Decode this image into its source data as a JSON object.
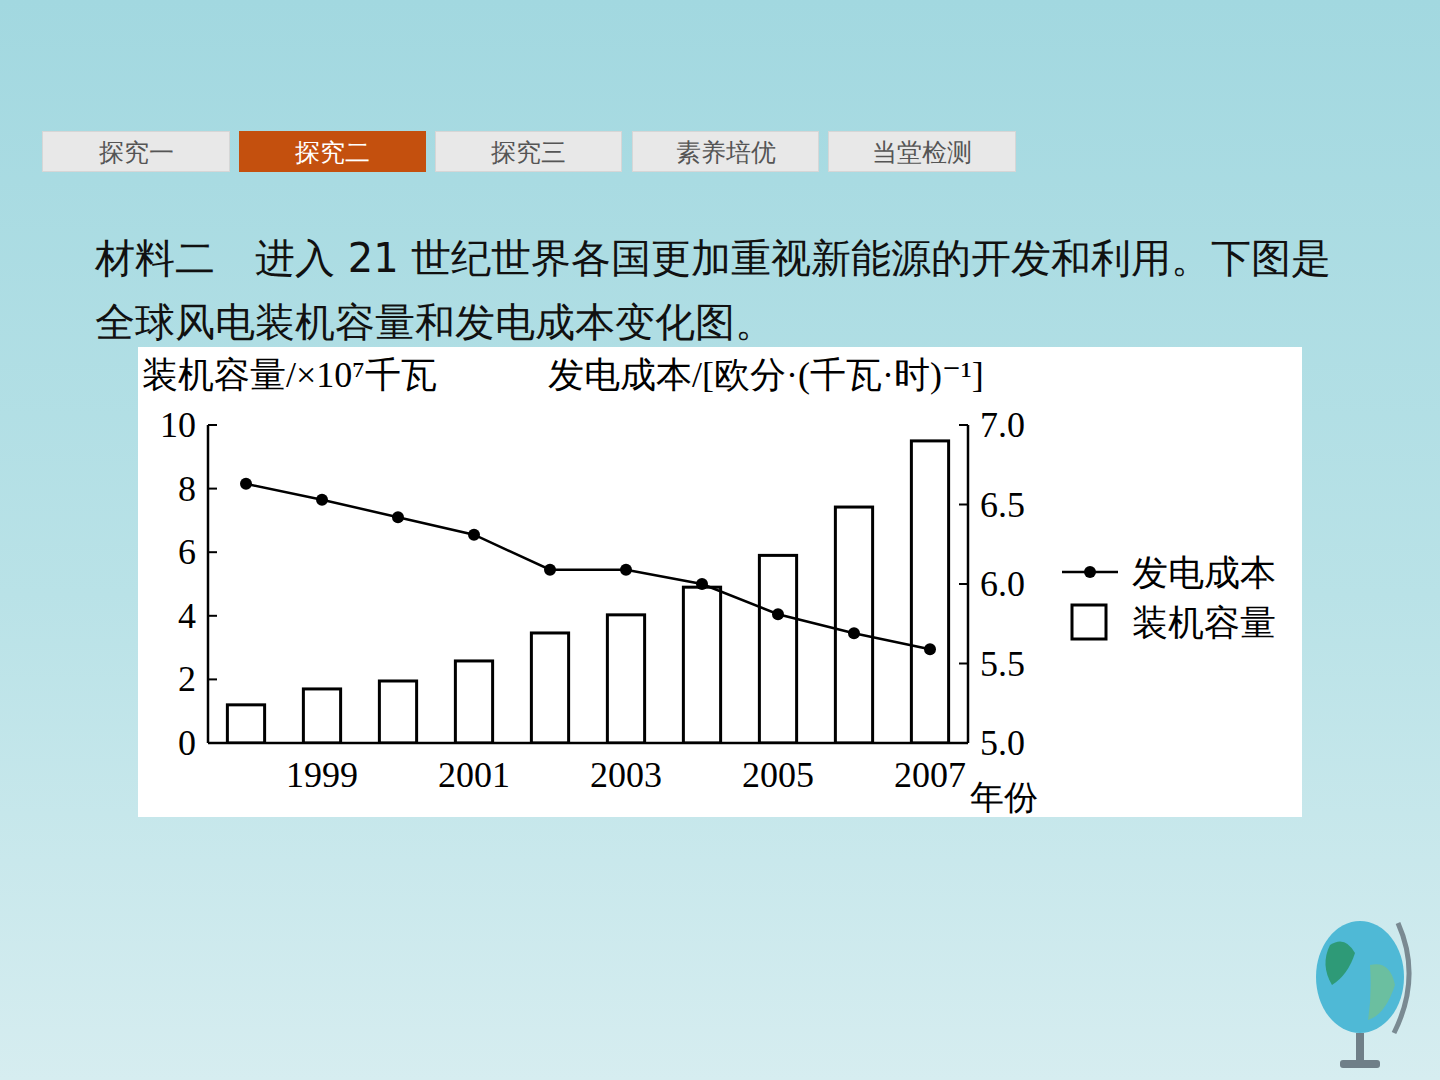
{
  "tabs": [
    {
      "label": "探究一"
    },
    {
      "label": "探究二",
      "active": true
    },
    {
      "label": "探究三"
    },
    {
      "label": "素养培优"
    },
    {
      "label": "当堂检测"
    }
  ],
  "material": "材料二　进入 21 世纪世界各国更加重视新能源的开发和利用。下图是全球风电装机容量和发电成本变化图。",
  "chart_data": {
    "type": "bar",
    "y_label": "装机容量/×10⁷千瓦",
    "y2_label": "发电成本/[欧分·(千瓦·时)⁻¹]",
    "x_label": "年份",
    "categories": [
      null,
      "1999",
      null,
      "2001",
      null,
      "2003",
      null,
      "2005",
      null,
      "2007"
    ],
    "series": [
      {
        "name": "发电成本",
        "type": "line",
        "axis": "y2",
        "color": "#000000",
        "marker": "circle",
        "values": [
          6.63,
          6.53,
          6.42,
          6.31,
          6.09,
          6.09,
          6.0,
          5.81,
          5.69,
          5.59
        ]
      },
      {
        "name": "装机容量",
        "type": "bar",
        "color": "#ffffff",
        "values": [
          1.2,
          1.7,
          1.95,
          2.58,
          3.46,
          4.03,
          4.9,
          5.9,
          7.42,
          9.5
        ]
      }
    ],
    "ylim": [
      0,
      10
    ],
    "yticks": [
      0,
      2,
      4,
      6,
      8,
      10
    ],
    "y2lim": [
      5,
      7
    ],
    "y2ticks": [
      {
        "value": 5,
        "label": "5.0"
      },
      {
        "value": 5.5,
        "label": "5.5"
      },
      {
        "value": 6,
        "label": "6.0"
      },
      {
        "value": 6.5,
        "label": "6.5"
      },
      {
        "value": 7,
        "label": "7.0"
      }
    ],
    "legend": "right",
    "grid": false
  }
}
